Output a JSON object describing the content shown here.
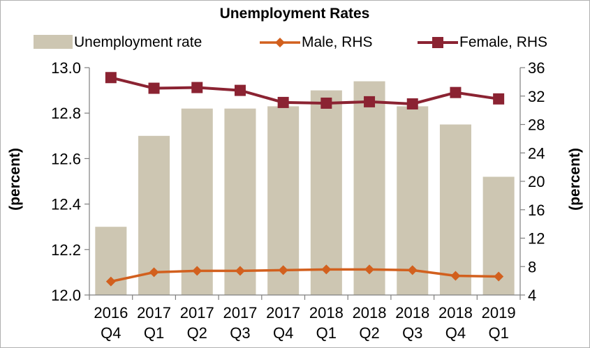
{
  "chart_data": {
    "type": "bar",
    "title": "Unemployment Rates",
    "categories": [
      [
        "2016",
        "Q4"
      ],
      [
        "2017",
        "Q1"
      ],
      [
        "2017",
        "Q2"
      ],
      [
        "2017",
        "Q3"
      ],
      [
        "2017",
        "Q4"
      ],
      [
        "2018",
        "Q1"
      ],
      [
        "2018",
        "Q2"
      ],
      [
        "2018",
        "Q3"
      ],
      [
        "2018",
        "Q4"
      ],
      [
        "2019",
        "Q1"
      ]
    ],
    "ylabel": "(percent)",
    "y2label": "(percent)",
    "ylim": [
      12.0,
      13.0
    ],
    "y2lim": [
      4,
      36
    ],
    "yticks": [
      "12.0",
      "12.2",
      "12.4",
      "12.6",
      "12.8",
      "13.0"
    ],
    "y2ticks": [
      "4",
      "8",
      "12",
      "16",
      "20",
      "24",
      "28",
      "32",
      "36"
    ],
    "legend_position": "top",
    "series": [
      {
        "name": "Unemployment rate",
        "kind": "bar",
        "axis": "left",
        "color": "#cdc6b2",
        "values": [
          12.3,
          12.7,
          12.82,
          12.82,
          12.83,
          12.9,
          12.94,
          12.83,
          12.75,
          12.52
        ]
      },
      {
        "name": "Male, RHS",
        "kind": "line",
        "axis": "right",
        "color": "#d2601e",
        "marker": "diamond",
        "values": [
          5.9,
          7.2,
          7.4,
          7.4,
          7.5,
          7.6,
          7.6,
          7.5,
          6.7,
          6.6
        ]
      },
      {
        "name": "Female, RHS",
        "kind": "line",
        "axis": "right",
        "color": "#8b2332",
        "marker": "square",
        "values": [
          34.6,
          33.1,
          33.2,
          32.8,
          31.1,
          31.0,
          31.2,
          30.9,
          32.5,
          31.6
        ]
      }
    ]
  }
}
